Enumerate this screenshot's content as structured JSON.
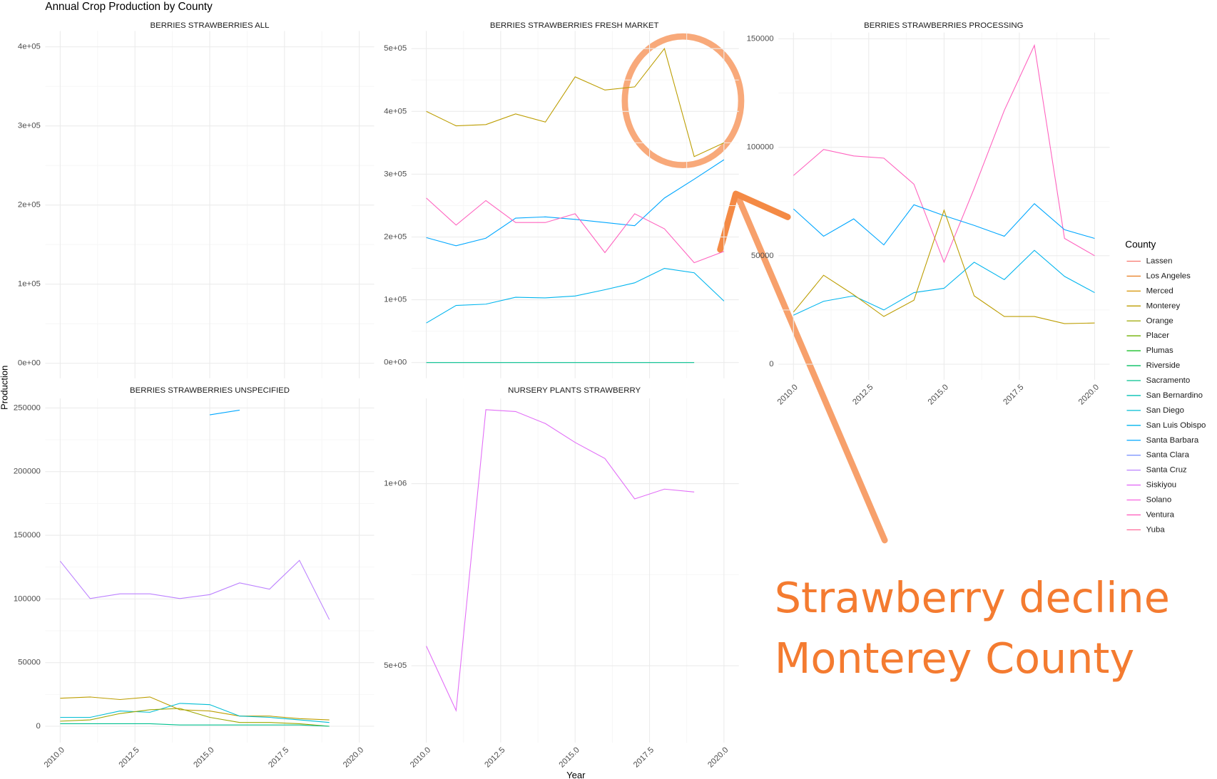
{
  "title": "Annual Crop Production by County",
  "x_label": "Year",
  "y_label": "Production",
  "legend": {
    "title": "County",
    "entries": [
      {
        "name": "Lassen",
        "color": "#F8766D"
      },
      {
        "name": "Los Angeles",
        "color": "#E9842C"
      },
      {
        "name": "Merced",
        "color": "#D69100"
      },
      {
        "name": "Monterey",
        "color": "#BC9D00"
      },
      {
        "name": "Orange",
        "color": "#9CA700"
      },
      {
        "name": "Placer",
        "color": "#6FB000"
      },
      {
        "name": "Plumas",
        "color": "#00B813"
      },
      {
        "name": "Riverside",
        "color": "#00BD61"
      },
      {
        "name": "Sacramento",
        "color": "#00C08E"
      },
      {
        "name": "San Bernardino",
        "color": "#00C0B4"
      },
      {
        "name": "San Diego",
        "color": "#00BDD4"
      },
      {
        "name": "San Luis Obispo",
        "color": "#00B5EE"
      },
      {
        "name": "Santa Barbara",
        "color": "#00A7FF"
      },
      {
        "name": "Santa Clara",
        "color": "#7F96FF"
      },
      {
        "name": "Santa Cruz",
        "color": "#BC81FF"
      },
      {
        "name": "Siskiyou",
        "color": "#E26EF7"
      },
      {
        "name": "Solano",
        "color": "#F863DF"
      },
      {
        "name": "Ventura",
        "color": "#FF62BF"
      },
      {
        "name": "Yuba",
        "color": "#FF6A9A"
      }
    ]
  },
  "annotation": [
    "Strawberry decline",
    "Monterey County"
  ],
  "chart_data": [
    {
      "type": "line",
      "title": "BERRIES STRAWBERRIES ALL",
      "x": [
        2010,
        2011,
        2012,
        2013,
        2014,
        2015,
        2016,
        2017,
        2018,
        2019,
        2020
      ],
      "xlim": [
        2009.5,
        2020.5
      ],
      "xticks": [
        2010,
        2012.5,
        2015,
        2017.5,
        2020
      ],
      "ylim": [
        -19000,
        420000
      ],
      "yticks": [
        {
          "value": 0,
          "label": "0e+00"
        },
        {
          "value": 100000,
          "label": "1e+05"
        },
        {
          "value": 200000,
          "label": "2e+05"
        },
        {
          "value": 300000,
          "label": "3e+05"
        },
        {
          "value": 400000,
          "label": "4e+05"
        }
      ],
      "grid": true,
      "series": []
    },
    {
      "type": "line",
      "title": "BERRIES STRAWBERRIES FRESH MARKET",
      "x": [
        2010,
        2011,
        2012,
        2013,
        2014,
        2015,
        2016,
        2017,
        2018,
        2019,
        2020
      ],
      "xlim": [
        2009.5,
        2020.5
      ],
      "xticks": [
        2010,
        2012.5,
        2015,
        2017.5,
        2020
      ],
      "ylim": [
        -25000,
        528000
      ],
      "yticks": [
        {
          "value": 0,
          "label": "0e+00"
        },
        {
          "value": 100000,
          "label": "1e+05"
        },
        {
          "value": 200000,
          "label": "2e+05"
        },
        {
          "value": 300000,
          "label": "3e+05"
        },
        {
          "value": 400000,
          "label": "4e+05"
        },
        {
          "value": 500000,
          "label": "5e+05"
        }
      ],
      "grid": true,
      "series": [
        {
          "name": "Monterey",
          "color": "#BC9D00",
          "values": [
            400000,
            377000,
            379000,
            396000,
            383000,
            455000,
            434000,
            439000,
            500000,
            328000,
            350000
          ]
        },
        {
          "name": "Santa Barbara",
          "color": "#00A7FF",
          "values": [
            199000,
            186000,
            198000,
            230000,
            232000,
            228000,
            223000,
            218000,
            262000,
            292000,
            323000
          ]
        },
        {
          "name": "Ventura",
          "color": "#FF62BF",
          "values": [
            262000,
            219000,
            258000,
            223000,
            223000,
            237000,
            175000,
            237000,
            213000,
            159000,
            177000
          ]
        },
        {
          "name": "San Luis Obispo",
          "color": "#00B5EE",
          "values": [
            63000,
            91000,
            93000,
            104000,
            103000,
            106000,
            116000,
            127000,
            150000,
            143000,
            98000
          ]
        },
        {
          "name": "Sacramento",
          "color": "#00C08E",
          "values": [
            0,
            0,
            0,
            0,
            0,
            0,
            0,
            0,
            0,
            0,
            null
          ]
        }
      ]
    },
    {
      "type": "line",
      "title": "BERRIES STRAWBERRIES PROCESSING",
      "x": [
        2010,
        2011,
        2012,
        2013,
        2014,
        2015,
        2016,
        2017,
        2018,
        2019,
        2020
      ],
      "xlim": [
        2009.5,
        2020.5
      ],
      "xticks": [
        {
          "value": 2010,
          "label": "2010.0"
        },
        {
          "value": 2012.5,
          "label": "2012.5"
        },
        {
          "value": 2015,
          "label": "2015.0"
        },
        {
          "value": 2017.5,
          "label": "2017.5"
        },
        {
          "value": 2020,
          "label": "2020.0"
        }
      ],
      "ylim": [
        -7200,
        152900
      ],
      "yticks": [
        0,
        50000,
        100000,
        150000
      ],
      "grid": true,
      "series": [
        {
          "name": "Ventura",
          "color": "#FF62BF",
          "values": [
            87000,
            99000,
            96000,
            95000,
            83000,
            47000,
            81000,
            117000,
            147000,
            58000,
            50000
          ]
        },
        {
          "name": "Santa Barbara",
          "color": "#00A7FF",
          "values": [
            71600,
            59000,
            67000,
            55000,
            73500,
            68500,
            64000,
            59000,
            74000,
            62000,
            58000
          ]
        },
        {
          "name": "San Luis Obispo",
          "color": "#00B5EE",
          "values": [
            22600,
            29000,
            31500,
            25000,
            33000,
            35000,
            47000,
            39000,
            52500,
            40500,
            33000
          ]
        },
        {
          "name": "Monterey",
          "color": "#BC9D00",
          "values": [
            24000,
            41000,
            32000,
            22000,
            29500,
            71000,
            31500,
            22000,
            22000,
            18700,
            19000
          ]
        }
      ]
    },
    {
      "type": "line",
      "title": "BERRIES STRAWBERRIES UNSPECIFIED",
      "x": [
        2010,
        2011,
        2012,
        2013,
        2014,
        2015,
        2016,
        2017,
        2018,
        2019,
        2020
      ],
      "xlim": [
        2009.5,
        2020.5
      ],
      "xticks": [
        {
          "value": 2010,
          "label": "2010.0"
        },
        {
          "value": 2012.5,
          "label": "2012.5"
        },
        {
          "value": 2015,
          "label": "2015.0"
        },
        {
          "value": 2017.5,
          "label": "2017.5"
        },
        {
          "value": 2020,
          "label": "2020.0"
        }
      ],
      "ylim": [
        -12800,
        257500
      ],
      "yticks": [
        0,
        50000,
        100000,
        150000,
        200000,
        250000
      ],
      "grid": true,
      "series": [
        {
          "name": "Santa Cruz",
          "color": "#BC81FF",
          "values": [
            129700,
            100300,
            104000,
            104000,
            100300,
            103400,
            112600,
            107700,
            130300,
            83800,
            null
          ]
        },
        {
          "name": "Santa Barbara",
          "color": "#00A7FF",
          "values": [
            null,
            null,
            null,
            null,
            null,
            244600,
            248300,
            null,
            null,
            null,
            null
          ]
        },
        {
          "name": "Monterey",
          "color": "#BC9D00",
          "values": [
            22000,
            23000,
            21000,
            23000,
            13000,
            12000,
            8000,
            8000,
            6000,
            5000,
            null
          ]
        },
        {
          "name": "San Diego",
          "color": "#00BDD4",
          "values": [
            7000,
            7000,
            12000,
            11000,
            18000,
            17000,
            8000,
            7000,
            5000,
            3000,
            null
          ]
        },
        {
          "name": "Orange",
          "color": "#9CA700",
          "values": [
            4000,
            5000,
            10000,
            13000,
            14000,
            7000,
            3000,
            3000,
            2000,
            0,
            null
          ]
        },
        {
          "name": "Sacramento",
          "color": "#00C08E",
          "values": [
            2000,
            2000,
            2000,
            2000,
            1000,
            1000,
            1000,
            1000,
            1000,
            0,
            null
          ]
        }
      ]
    },
    {
      "type": "line",
      "title": "NURSERY PLANTS STRAWBERRY",
      "x": [
        2010,
        2011,
        2012,
        2013,
        2014,
        2015,
        2016,
        2017,
        2018,
        2019,
        2020
      ],
      "xlim": [
        2009.5,
        2020.5
      ],
      "xticks": [
        {
          "value": 2010,
          "label": "2010.0"
        },
        {
          "value": 2012.5,
          "label": "2012.5"
        },
        {
          "value": 2015,
          "label": "2015.0"
        },
        {
          "value": 2017.5,
          "label": "2017.5"
        },
        {
          "value": 2020,
          "label": "2020.0"
        }
      ],
      "ylim": [
        289000,
        1234000
      ],
      "yticks": [
        {
          "value": 500000,
          "label": "5e+05"
        },
        {
          "value": 1000000,
          "label": "1e+06"
        }
      ],
      "grid": true,
      "series": [
        {
          "name": "Siskiyou",
          "color": "#E26EF7",
          "values": [
            554000,
            377000,
            1203000,
            1198000,
            1165000,
            1113000,
            1069000,
            958000,
            985000,
            977000,
            null
          ]
        }
      ]
    }
  ]
}
